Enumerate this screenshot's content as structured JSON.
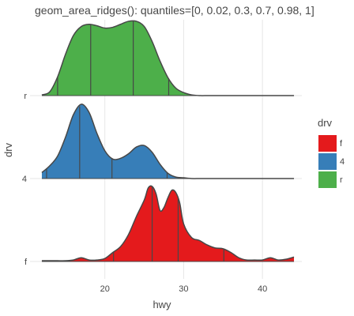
{
  "chart_data": {
    "type": "area_ridges",
    "title": "geom_area_ridges(): quantiles=[0, 0.02, 0.3, 0.7, 0.98, 1]",
    "xlabel": "hwy",
    "ylabel": "drv",
    "xlim": [
      10.5,
      45
    ],
    "x_ticks": [
      20,
      30,
      40
    ],
    "categories": [
      "f",
      "4",
      "r"
    ],
    "legend": {
      "title": "drv",
      "position": "right",
      "items": [
        {
          "label": "f",
          "color": "#e41a1c"
        },
        {
          "label": "4",
          "color": "#377eb8"
        },
        {
          "label": "r",
          "color": "#4daf4a"
        }
      ]
    },
    "series": [
      {
        "category": "r",
        "color": "#4daf4a",
        "x": [
          12,
          13,
          14,
          15,
          16,
          17,
          18,
          19,
          20,
          21,
          22,
          23,
          24,
          25,
          26,
          27,
          28,
          29,
          30,
          31,
          32,
          33,
          34,
          35,
          36,
          37,
          38,
          39,
          40,
          41,
          42,
          43,
          44
        ],
        "y": [
          0.01,
          0.05,
          0.25,
          0.55,
          0.8,
          0.92,
          0.95,
          0.93,
          0.9,
          0.91,
          0.95,
          0.99,
          0.99,
          0.92,
          0.72,
          0.46,
          0.24,
          0.1,
          0.04,
          0.01,
          0,
          0,
          0,
          0,
          0,
          0,
          0,
          0,
          0,
          0,
          0,
          0,
          0
        ],
        "quantiles": [
          14,
          18.2,
          23.6,
          28.1
        ]
      },
      {
        "category": "4",
        "color": "#377eb8",
        "x": [
          12,
          13,
          14,
          15,
          16,
          17,
          18,
          19,
          20,
          21,
          22,
          23,
          24,
          25,
          26,
          27,
          28,
          29,
          30,
          31,
          32,
          33,
          34,
          35,
          36,
          37,
          38,
          39,
          40,
          41,
          42,
          43,
          44
        ],
        "y": [
          0.08,
          0.17,
          0.3,
          0.55,
          0.85,
          0.99,
          0.88,
          0.6,
          0.37,
          0.26,
          0.27,
          0.33,
          0.42,
          0.44,
          0.35,
          0.19,
          0.07,
          0.02,
          0.01,
          0,
          0,
          0,
          0,
          0,
          0,
          0,
          0,
          0,
          0,
          0,
          0,
          0,
          0
        ],
        "quantiles": [
          12.6,
          16.8,
          20.9,
          27.9
        ]
      },
      {
        "category": "f",
        "color": "#e41a1c",
        "x": [
          12,
          13,
          14,
          15,
          16,
          17,
          18,
          19,
          20,
          21,
          22,
          23,
          24,
          25,
          25.5,
          26,
          26.5,
          27,
          27.5,
          28,
          28.5,
          29,
          29.5,
          30,
          31,
          32,
          33,
          34,
          35,
          36,
          37,
          38,
          39,
          40,
          41,
          42,
          43,
          44
        ],
        "y": [
          0.01,
          0.01,
          0.01,
          0.01,
          0.02,
          0.05,
          0.02,
          0.02,
          0.04,
          0.12,
          0.2,
          0.36,
          0.6,
          0.82,
          0.98,
          1.0,
          0.9,
          0.68,
          0.72,
          0.85,
          0.95,
          0.92,
          0.78,
          0.5,
          0.32,
          0.28,
          0.22,
          0.18,
          0.17,
          0.12,
          0.05,
          0.02,
          0.02,
          0.02,
          0.05,
          0.02,
          0.03,
          0.06
        ],
        "quantiles": [
          21.1,
          26.0,
          29.3,
          35.1
        ]
      }
    ]
  }
}
